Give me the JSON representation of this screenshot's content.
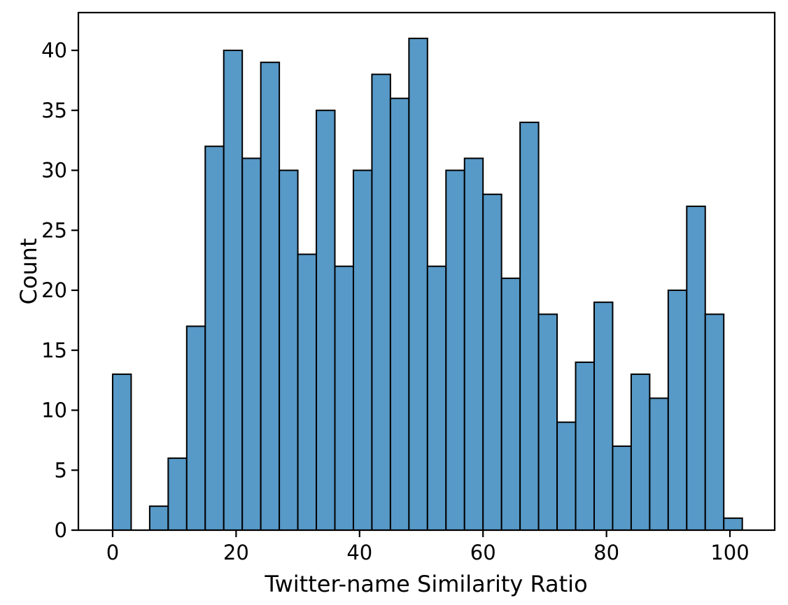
{
  "chart_data": {
    "type": "bar",
    "subtype": "histogram",
    "title": "",
    "xlabel": "Twitter-name Similarity Ratio",
    "ylabel": "Count",
    "bin_start": 0,
    "bin_width": 3,
    "bin_edges_range": [
      0,
      102
    ],
    "counts": [
      13,
      0,
      2,
      6,
      17,
      32,
      40,
      31,
      39,
      30,
      23,
      35,
      22,
      30,
      38,
      36,
      41,
      22,
      30,
      31,
      28,
      21,
      34,
      18,
      9,
      14,
      19,
      7,
      13,
      11,
      20,
      27,
      18,
      1
    ],
    "x_ticks": [
      0,
      20,
      40,
      60,
      80,
      100
    ],
    "y_ticks": [
      0,
      5,
      10,
      15,
      20,
      25,
      30,
      35,
      40
    ],
    "xlim": [
      -5.55,
      107.25
    ],
    "ylim": [
      0,
      43.15
    ],
    "bar_color": "#5799c7",
    "bar_edge_color": "#000000",
    "spine_color": "#000000",
    "background_color": "#ffffff",
    "grid": false,
    "legend": null
  }
}
